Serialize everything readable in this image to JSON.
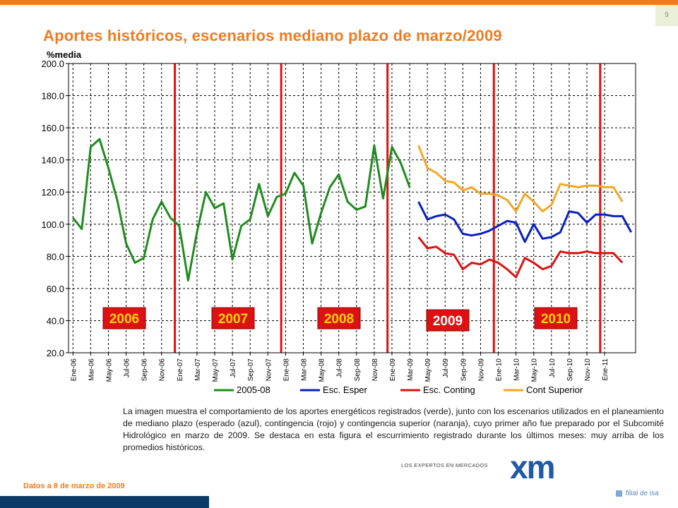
{
  "page": {
    "number": "9",
    "title": "Aportes históricos, escenarios mediano plazo de marzo/2009",
    "caption": "La imagen muestra el comportamiento de los aportes energéticos registrados (verde), junto con los escenarios utilizados en el planeamiento de mediano plazo (esperado (azul), contingencia (rojo) y contingencia superior (naranja), cuyo primer año fue preparado por el Subcomité Hidrológico en marzo de 2009. Se destaca en esta figura el escurrimiento registrado durante los últimos meses: muy arriba de los promedios históricos.",
    "date_note": "Datos a 8 de marzo de 2009",
    "logo": {
      "tagline": "LOS EXPERTOS EN MERCADOS",
      "mark": "xm",
      "subtitle": "filial de isa"
    }
  },
  "colors": {
    "brand_orange": "#f07b1f",
    "navy": "#0b3a66",
    "year_divider": "#e01010",
    "green": "#1e8c1e",
    "blue": "#0a1fbf",
    "red": "#dd1111",
    "orange": "#f5a623"
  },
  "chart_data": {
    "type": "line",
    "ylabel": "%media",
    "ylim": [
      20,
      200
    ],
    "yticks": [
      "200.0",
      "180.0",
      "160.0",
      "140.0",
      "120.0",
      "100.0",
      "80.0",
      "60.0",
      "40.0",
      "20.0"
    ],
    "grid": true,
    "legend_position": "bottom",
    "x_labels": [
      "Ene-06",
      "Mar-06",
      "May-06",
      "Jul-06",
      "Sep-06",
      "Nov-06",
      "Ene-07",
      "Mar-07",
      "May-07",
      "Jul-07",
      "Sep-07",
      "Nov-07",
      "Ene-08",
      "Mar-08",
      "May-08",
      "Jul-08",
      "Sep-08",
      "Nov-08",
      "Ene-09",
      "Mar-09",
      "May-09",
      "Jul-09",
      "Sep-09",
      "Nov-09",
      "Ene-10",
      "Mar-10",
      "May-10",
      "Jul-10",
      "Sep-10",
      "Nov-10",
      "Ene-11"
    ],
    "year_labels": [
      "2006",
      "2007",
      "2008",
      "2009",
      "2010"
    ],
    "series": [
      {
        "name": "2005-08",
        "color": "#1e8c1e",
        "start": "Ene-06",
        "values": [
          104,
          97,
          148,
          153,
          135,
          115,
          88,
          76,
          79,
          103,
          114,
          104,
          99,
          65,
          95,
          120,
          110,
          113,
          78,
          99,
          103,
          125,
          105,
          117,
          119,
          132,
          124,
          88,
          107,
          123,
          131,
          114,
          109,
          111,
          149,
          116,
          148,
          138,
          123
        ]
      },
      {
        "name": "Esc. Esper",
        "color": "#0a1fbf",
        "start": "Abr-09",
        "values": [
          114,
          103,
          105,
          106,
          103,
          94,
          93,
          94,
          96,
          99,
          102,
          101,
          89,
          100,
          91,
          92,
          95,
          108,
          107,
          101,
          106,
          106,
          105,
          105,
          95
        ]
      },
      {
        "name": "Esc. Conting",
        "color": "#dd1111",
        "start": "Abr-09",
        "values": [
          92,
          85,
          86,
          82,
          81,
          72,
          76,
          75,
          78,
          76,
          72,
          67,
          79,
          76,
          72,
          74,
          83,
          82,
          82,
          83,
          82,
          82,
          82,
          76
        ]
      },
      {
        "name": "Cont Superior",
        "color": "#f5a623",
        "start": "Abr-09",
        "values": [
          149,
          135,
          132,
          127,
          126,
          121,
          123,
          119,
          119,
          118,
          115,
          108,
          119,
          114,
          108,
          112,
          125,
          124,
          123,
          124,
          124,
          123,
          123,
          114
        ]
      }
    ]
  }
}
